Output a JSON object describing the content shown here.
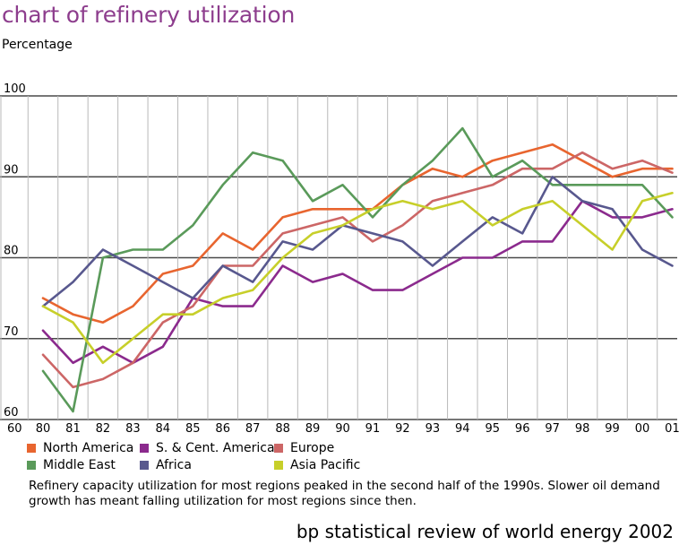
{
  "page": {
    "title": "chart of refinery utilization",
    "caption": "Refinery capacity utilization for most regions peaked in the second half of the 1990s. Slower oil demand growth has meant falling utilization for most regions since then.",
    "source": "bp statistical review of world energy 2002"
  },
  "chart_data": {
    "type": "line",
    "title": "chart of refinery utilization",
    "ylabel": "Percentage",
    "xlabel": "",
    "categories": [
      "80",
      "81",
      "82",
      "83",
      "84",
      "85",
      "86",
      "87",
      "88",
      "89",
      "90",
      "91",
      "92",
      "93",
      "94",
      "95",
      "96",
      "97",
      "98",
      "99",
      "00",
      "01"
    ],
    "ylim": [
      60,
      100
    ],
    "yticks": [
      60,
      70,
      80,
      90,
      100
    ],
    "grid": true,
    "legend_position": "bottom",
    "series": [
      {
        "name": "North America",
        "color": "#e8652f",
        "values": [
          75,
          73,
          72,
          74,
          78,
          79,
          83,
          81,
          85,
          86,
          86,
          86,
          89,
          91,
          90,
          92,
          93,
          94,
          92,
          90,
          91,
          91
        ]
      },
      {
        "name": "S. & Cent. America",
        "color": "#8b2a8d",
        "values": [
          71,
          67,
          69,
          67,
          69,
          75,
          74,
          74,
          79,
          77,
          78,
          76,
          76,
          78,
          80,
          80,
          82,
          82,
          87,
          85,
          85,
          86
        ]
      },
      {
        "name": "Europe",
        "color": "#cc6666",
        "values": [
          68,
          64,
          65,
          67,
          72,
          74,
          79,
          79,
          83,
          84,
          85,
          82,
          84,
          87,
          88,
          89,
          91,
          91,
          93,
          91,
          92,
          90.5
        ]
      },
      {
        "name": "Middle East",
        "color": "#5a9a5a",
        "values": [
          66,
          61,
          80,
          81,
          81,
          84,
          89,
          93,
          92,
          87,
          89,
          85,
          89,
          92,
          96,
          90,
          92,
          89,
          89,
          89,
          89,
          85
        ]
      },
      {
        "name": "Africa",
        "color": "#58588e",
        "values": [
          74,
          77,
          81,
          79,
          77,
          75,
          79,
          77,
          82,
          81,
          84,
          83,
          82,
          79,
          82,
          85,
          83,
          90,
          87,
          86,
          81,
          79
        ]
      },
      {
        "name": "Asia Pacific",
        "color": "#c7cf2a",
        "values": [
          74,
          72,
          67,
          70,
          73,
          73,
          75,
          76,
          80,
          83,
          84,
          86,
          87,
          86,
          87,
          84,
          86,
          87,
          84,
          81,
          87,
          88
        ]
      }
    ]
  }
}
